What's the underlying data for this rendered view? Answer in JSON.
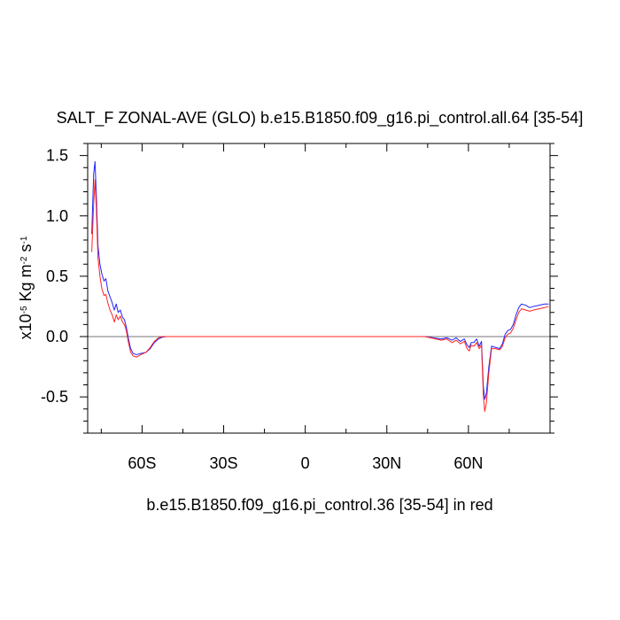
{
  "chart_data": {
    "type": "line",
    "title": "SALT_F ZONAL-AVE (GLO) b.e15.B1850.f09_g16.pi_control.all.64 [35-54]",
    "subtitle": "b.e15.B1850.f09_g16.pi_control.36 [35-54] in red",
    "ylabel": {
      "prefix": "x10",
      "prefix_exp": "-5",
      "unit1": " Kg m",
      "unit1_exp": "-2",
      "unit2": " s",
      "unit2_exp": "-1"
    },
    "xlim": [
      -80,
      90
    ],
    "ylim": [
      -0.8,
      1.6
    ],
    "xticks": [
      {
        "value": -60,
        "label": "60S"
      },
      {
        "value": -30,
        "label": "30S"
      },
      {
        "value": 0,
        "label": "0"
      },
      {
        "value": 30,
        "label": "30N"
      },
      {
        "value": 60,
        "label": "60N"
      }
    ],
    "yticks": [
      {
        "value": 1.5,
        "label": "1.5"
      },
      {
        "value": 1.0,
        "label": "1.0"
      },
      {
        "value": 0.5,
        "label": "0.5"
      },
      {
        "value": 0.0,
        "label": "0.0"
      },
      {
        "value": -0.5,
        "label": "-0.5"
      }
    ],
    "zero_line": true,
    "series": [
      {
        "color": "#2222ff",
        "points": [
          [
            -78.5,
            0.85
          ],
          [
            -77.8,
            1.35
          ],
          [
            -77.3,
            1.45
          ],
          [
            -76.8,
            1.15
          ],
          [
            -76.2,
            0.75
          ],
          [
            -75.5,
            0.6
          ],
          [
            -74.8,
            0.52
          ],
          [
            -74.0,
            0.46
          ],
          [
            -73.3,
            0.48
          ],
          [
            -72.6,
            0.38
          ],
          [
            -71.8,
            0.33
          ],
          [
            -71.0,
            0.28
          ],
          [
            -70.2,
            0.22
          ],
          [
            -69.5,
            0.27
          ],
          [
            -68.8,
            0.2
          ],
          [
            -68.0,
            0.22
          ],
          [
            -67.2,
            0.16
          ],
          [
            -66.5,
            0.14
          ],
          [
            -65.8,
            0.08
          ],
          [
            -65.0,
            -0.02
          ],
          [
            -64.2,
            -0.1
          ],
          [
            -63.3,
            -0.14
          ],
          [
            -62.0,
            -0.15
          ],
          [
            -60.5,
            -0.14
          ],
          [
            -58.5,
            -0.13
          ],
          [
            -57.0,
            -0.1
          ],
          [
            -55.5,
            -0.05
          ],
          [
            -54.0,
            -0.02
          ],
          [
            -52.5,
            -0.005
          ],
          [
            -51.0,
            0.0
          ],
          [
            -45.0,
            0.0
          ],
          [
            -30.0,
            0.0
          ],
          [
            -15.0,
            0.0
          ],
          [
            0.0,
            0.0
          ],
          [
            15.0,
            0.0
          ],
          [
            30.0,
            0.0
          ],
          [
            40.0,
            0.0
          ],
          [
            44.0,
            0.0
          ],
          [
            47.0,
            -0.01
          ],
          [
            50.0,
            -0.02
          ],
          [
            52.0,
            -0.01
          ],
          [
            54.0,
            -0.03
          ],
          [
            55.5,
            -0.01
          ],
          [
            57.0,
            -0.04
          ],
          [
            58.5,
            -0.02
          ],
          [
            59.5,
            -0.07
          ],
          [
            60.3,
            -0.09
          ],
          [
            61.0,
            -0.05
          ],
          [
            62.0,
            -0.05
          ],
          [
            63.0,
            -0.02
          ],
          [
            64.0,
            -0.08
          ],
          [
            64.8,
            -0.04
          ],
          [
            65.5,
            -0.42
          ],
          [
            66.0,
            -0.52
          ],
          [
            66.6,
            -0.47
          ],
          [
            67.5,
            -0.25
          ],
          [
            68.5,
            -0.08
          ],
          [
            70.0,
            -0.09
          ],
          [
            71.5,
            -0.1
          ],
          [
            72.5,
            -0.06
          ],
          [
            73.5,
            0.02
          ],
          [
            74.5,
            0.05
          ],
          [
            75.5,
            0.06
          ],
          [
            76.5,
            0.1
          ],
          [
            77.5,
            0.18
          ],
          [
            78.5,
            0.24
          ],
          [
            79.5,
            0.27
          ],
          [
            81.0,
            0.26
          ],
          [
            82.5,
            0.24
          ],
          [
            84.0,
            0.25
          ],
          [
            86.0,
            0.26
          ],
          [
            88.0,
            0.27
          ],
          [
            89.5,
            0.27
          ]
        ]
      },
      {
        "color": "#ff2222",
        "points": [
          [
            -78.5,
            0.7
          ],
          [
            -77.8,
            1.1
          ],
          [
            -77.3,
            1.3
          ],
          [
            -76.8,
            1.05
          ],
          [
            -76.2,
            0.65
          ],
          [
            -75.5,
            0.5
          ],
          [
            -74.8,
            0.4
          ],
          [
            -74.0,
            0.34
          ],
          [
            -73.3,
            0.35
          ],
          [
            -72.6,
            0.28
          ],
          [
            -71.8,
            0.22
          ],
          [
            -71.0,
            0.18
          ],
          [
            -70.2,
            0.12
          ],
          [
            -69.5,
            0.18
          ],
          [
            -68.8,
            0.14
          ],
          [
            -68.0,
            0.17
          ],
          [
            -67.2,
            0.12
          ],
          [
            -66.5,
            0.1
          ],
          [
            -65.8,
            0.05
          ],
          [
            -65.0,
            -0.05
          ],
          [
            -64.2,
            -0.13
          ],
          [
            -63.3,
            -0.16
          ],
          [
            -62.0,
            -0.17
          ],
          [
            -60.5,
            -0.15
          ],
          [
            -58.5,
            -0.13
          ],
          [
            -57.0,
            -0.09
          ],
          [
            -55.5,
            -0.04
          ],
          [
            -54.0,
            -0.01
          ],
          [
            -52.5,
            0.0
          ],
          [
            -51.0,
            0.0
          ],
          [
            -45.0,
            0.0
          ],
          [
            -30.0,
            0.0
          ],
          [
            -15.0,
            0.0
          ],
          [
            0.0,
            0.0
          ],
          [
            15.0,
            0.0
          ],
          [
            30.0,
            0.0
          ],
          [
            40.0,
            0.0
          ],
          [
            44.0,
            0.0
          ],
          [
            47.0,
            -0.015
          ],
          [
            50.0,
            -0.03
          ],
          [
            52.0,
            -0.02
          ],
          [
            54.0,
            -0.05
          ],
          [
            55.5,
            -0.03
          ],
          [
            57.0,
            -0.06
          ],
          [
            58.5,
            -0.04
          ],
          [
            59.5,
            -0.1
          ],
          [
            60.3,
            -0.12
          ],
          [
            61.0,
            -0.07
          ],
          [
            62.0,
            -0.08
          ],
          [
            63.0,
            -0.05
          ],
          [
            64.0,
            -0.1
          ],
          [
            64.8,
            -0.07
          ],
          [
            65.5,
            -0.5
          ],
          [
            66.0,
            -0.62
          ],
          [
            66.6,
            -0.55
          ],
          [
            67.5,
            -0.3
          ],
          [
            68.5,
            -0.1
          ],
          [
            70.0,
            -0.1
          ],
          [
            71.5,
            -0.11
          ],
          [
            72.5,
            -0.08
          ],
          [
            73.5,
            -0.01
          ],
          [
            74.5,
            0.02
          ],
          [
            75.5,
            0.03
          ],
          [
            76.5,
            0.07
          ],
          [
            77.5,
            0.14
          ],
          [
            78.5,
            0.2
          ],
          [
            79.5,
            0.23
          ],
          [
            81.0,
            0.22
          ],
          [
            82.5,
            0.21
          ],
          [
            84.0,
            0.22
          ],
          [
            86.0,
            0.23
          ],
          [
            88.0,
            0.24
          ],
          [
            89.5,
            0.25
          ]
        ]
      }
    ]
  }
}
